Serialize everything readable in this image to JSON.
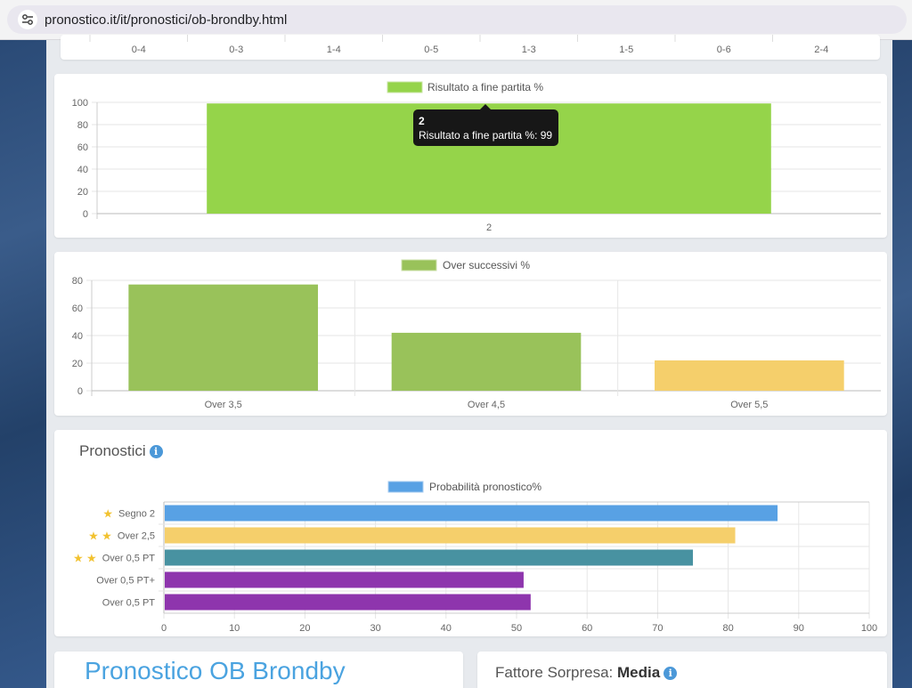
{
  "browser": {
    "url": "pronostico.it/it/pronostici/ob-brondby.html"
  },
  "score_row": {
    "labels": [
      "0-4",
      "0-3",
      "1-4",
      "0-5",
      "1-3",
      "1-5",
      "0-6",
      "2-4"
    ]
  },
  "chart_data": [
    {
      "type": "bar",
      "categories": [
        "2"
      ],
      "series": [
        {
          "name": "Risultato a fine partita %",
          "values": [
            99
          ]
        }
      ],
      "ylim": [
        0,
        100
      ],
      "yticks": [
        0,
        20,
        40,
        60,
        80,
        100
      ],
      "colors": {
        "bar": "#95d44a"
      },
      "tooltip": {
        "title": "2",
        "label": "Risultato a fine partita %: 99"
      }
    },
    {
      "type": "bar",
      "categories": [
        "Over 3,5",
        "Over 4,5",
        "Over 5,5"
      ],
      "series": [
        {
          "name": "Over successivi %",
          "values": [
            77,
            42,
            22
          ]
        }
      ],
      "ylim": [
        0,
        80
      ],
      "yticks": [
        0,
        20,
        40,
        60,
        80
      ],
      "colors": {
        "bars": [
          "#99c25a",
          "#99c25a",
          "#f5cf6b"
        ],
        "legend": "#99c25a"
      }
    },
    {
      "type": "bar",
      "orientation": "horizontal",
      "categories": [
        "Segno 2",
        "Over 2,5",
        "Over 0,5 PT",
        "Over 0,5 PT+",
        "Over 0,5 PT"
      ],
      "stars": [
        1,
        2,
        2,
        0,
        0
      ],
      "series": [
        {
          "name": "Probabilità pronostico%",
          "values": [
            87,
            81,
            75,
            51,
            52
          ]
        }
      ],
      "xlim": [
        0,
        100
      ],
      "xticks": [
        0,
        10,
        20,
        30,
        40,
        50,
        60,
        70,
        80,
        90,
        100
      ],
      "colors": {
        "bars": [
          "#58a1e4",
          "#f5cf6b",
          "#4892a1",
          "#8e35ad",
          "#8e35ad"
        ],
        "legend": "#58a1e4"
      }
    }
  ],
  "pronostici": {
    "title": "Pronostici",
    "info_icon": "i"
  },
  "bottom": {
    "title": "Pronostico OB Brondby",
    "sorpresa_label": "Fattore Sorpresa:",
    "sorpresa_value": "Media",
    "info_icon": "i"
  }
}
